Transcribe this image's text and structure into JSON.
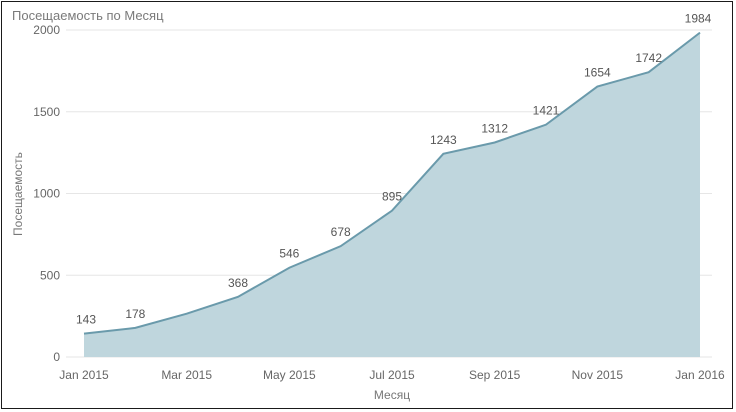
{
  "chart_data": {
    "type": "area",
    "title": "Посещаемость по Месяц",
    "xlabel": "Месяц",
    "ylabel": "Посещаемость",
    "ylim": [
      0,
      2000
    ],
    "yticks": [
      "0",
      "500",
      "1000",
      "1500",
      "2000"
    ],
    "xticks": [
      "Jan 2015",
      "Mar 2015",
      "May 2015",
      "Jul 2015",
      "Sep 2015",
      "Nov 2015",
      "Jan 2016"
    ],
    "x": [
      "Jan 2015",
      "Feb 2015",
      "Mar 2015",
      "Apr 2015",
      "May 2015",
      "Jun 2015",
      "Jul 2015",
      "Aug 2015",
      "Sep 2015",
      "Oct 2015",
      "Nov 2015",
      "Dec 2015",
      "Jan 2016"
    ],
    "values": [
      143,
      178,
      265,
      368,
      546,
      678,
      895,
      1243,
      1312,
      1421,
      1654,
      1742,
      1984
    ],
    "data_labels_shown": [
      true,
      true,
      false,
      true,
      true,
      true,
      true,
      true,
      true,
      true,
      true,
      true,
      true
    ],
    "grid": true,
    "colors": {
      "area": "#bfd6dd",
      "line": "#6a9aab",
      "grid": "#e6e6e6"
    }
  }
}
